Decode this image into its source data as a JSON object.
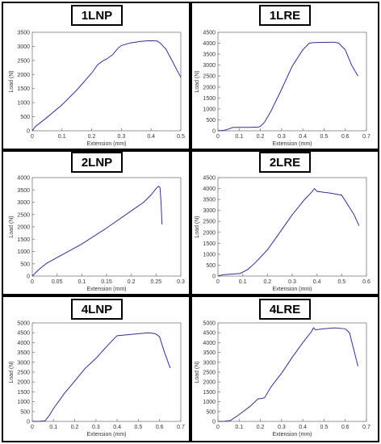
{
  "chart_data": [
    {
      "type": "line",
      "panel_title": "1LNP",
      "xlabel": "Extension (mm)",
      "ylabel": "Load (N)",
      "xlim": [
        0,
        0.5
      ],
      "ylim": [
        0,
        3500
      ],
      "xticks": [
        "0",
        "0.1",
        "0.2",
        "0.3",
        "0.4",
        "0.5"
      ],
      "yticks": [
        "0",
        "500",
        "1000",
        "1500",
        "2000",
        "2500",
        "3000",
        "3500"
      ],
      "grid": false,
      "line_color": "#2e3192",
      "x": [
        0,
        0.01,
        0.05,
        0.1,
        0.15,
        0.2,
        0.22,
        0.24,
        0.25,
        0.27,
        0.29,
        0.3,
        0.33,
        0.36,
        0.38,
        0.4,
        0.42,
        0.43,
        0.45,
        0.47,
        0.49,
        0.5
      ],
      "y": [
        0,
        150,
        480,
        920,
        1450,
        2050,
        2350,
        2500,
        2550,
        2700,
        2950,
        3030,
        3120,
        3170,
        3190,
        3200,
        3190,
        3120,
        2900,
        2500,
        2100,
        1900
      ]
    },
    {
      "type": "line",
      "panel_title": "1LRE",
      "xlabel": "Extension (mm)",
      "ylabel": "Load (N)",
      "xlim": [
        0,
        0.7
      ],
      "ylim": [
        0,
        4500
      ],
      "xticks": [
        "0",
        "0.1",
        "0.2",
        "0.3",
        "0.4",
        "0.5",
        "0.6",
        "0.7"
      ],
      "yticks": [
        "0",
        "500",
        "1000",
        "1500",
        "2000",
        "2500",
        "3000",
        "3500",
        "4000",
        "4500"
      ],
      "grid": false,
      "line_color": "#2e3192",
      "x": [
        0,
        0.03,
        0.05,
        0.07,
        0.1,
        0.15,
        0.19,
        0.2,
        0.22,
        0.25,
        0.3,
        0.35,
        0.4,
        0.43,
        0.45,
        0.5,
        0.55,
        0.57,
        0.6,
        0.63,
        0.66
      ],
      "y": [
        0,
        20,
        80,
        150,
        160,
        160,
        170,
        200,
        400,
        900,
        1900,
        2950,
        3700,
        4000,
        4030,
        4040,
        4050,
        4000,
        3700,
        3000,
        2500
      ]
    },
    {
      "type": "line",
      "panel_title": "2LNP",
      "xlabel": "Extension (mm)",
      "ylabel": "Load (N)",
      "xlim": [
        0,
        0.3
      ],
      "ylim": [
        0,
        4000
      ],
      "xticks": [
        "0",
        "0.05",
        "0.1",
        "0.15",
        "0.2",
        "0.25",
        "0.3"
      ],
      "yticks": [
        "0",
        "500",
        "1000",
        "1500",
        "2000",
        "2500",
        "3000",
        "3500",
        "4000"
      ],
      "grid": false,
      "line_color": "#2e3192",
      "x": [
        0,
        0.01,
        0.02,
        0.03,
        0.05,
        0.1,
        0.15,
        0.2,
        0.225,
        0.24,
        0.25,
        0.255,
        0.258,
        0.26,
        0.262
      ],
      "y": [
        0,
        200,
        380,
        530,
        750,
        1300,
        1950,
        2650,
        3000,
        3300,
        3550,
        3650,
        3600,
        3000,
        2100
      ]
    },
    {
      "type": "line",
      "panel_title": "2LRE",
      "xlabel": "Extension (mm)",
      "ylabel": "Load (N)",
      "xlim": [
        0,
        0.6
      ],
      "ylim": [
        0,
        4500
      ],
      "xticks": [
        "0",
        "0.1",
        "0.2",
        "0.3",
        "0.4",
        "0.5",
        "0.6"
      ],
      "yticks": [
        "0",
        "500",
        "1000",
        "1500",
        "2000",
        "2500",
        "3000",
        "3500",
        "4000",
        "4500"
      ],
      "grid": false,
      "line_color": "#2e3192",
      "x": [
        0,
        0.02,
        0.05,
        0.09,
        0.12,
        0.15,
        0.2,
        0.25,
        0.3,
        0.35,
        0.38,
        0.39,
        0.4,
        0.45,
        0.5,
        0.55,
        0.57
      ],
      "y": [
        0,
        60,
        90,
        120,
        300,
        600,
        1200,
        2000,
        2800,
        3500,
        3850,
        4000,
        3870,
        3800,
        3700,
        2800,
        2300
      ]
    },
    {
      "type": "line",
      "panel_title": "4LNP",
      "xlabel": "Extension (mm)",
      "ylabel": "Load (N)",
      "xlim": [
        0,
        0.7
      ],
      "ylim": [
        0,
        5000
      ],
      "xticks": [
        "0",
        "0.1",
        "0.2",
        "0.3",
        "0.4",
        "0.5",
        "0.6",
        "0.7"
      ],
      "yticks": [
        "0",
        "500",
        "1000",
        "1500",
        "2000",
        "2500",
        "3000",
        "3500",
        "4000",
        "4500",
        "5000"
      ],
      "grid": false,
      "line_color": "#2e3192",
      "x": [
        0,
        0.03,
        0.06,
        0.08,
        0.1,
        0.15,
        0.2,
        0.25,
        0.3,
        0.35,
        0.39,
        0.4,
        0.42,
        0.45,
        0.5,
        0.55,
        0.58,
        0.6,
        0.62,
        0.65
      ],
      "y": [
        0,
        0,
        30,
        300,
        650,
        1400,
        2050,
        2700,
        3200,
        3800,
        4250,
        4350,
        4370,
        4400,
        4450,
        4500,
        4450,
        4300,
        3600,
        2700
      ]
    },
    {
      "type": "line",
      "panel_title": "4LRE",
      "xlabel": "Extension (mm)",
      "ylabel": "Load (N)",
      "xlim": [
        0,
        0.7
      ],
      "ylim": [
        0,
        5000
      ],
      "xticks": [
        "0",
        "0.1",
        "0.2",
        "0.3",
        "0.4",
        "0.5",
        "0.6",
        "0.7"
      ],
      "yticks": [
        "0",
        "500",
        "1000",
        "1500",
        "2000",
        "2500",
        "3000",
        "3500",
        "4000",
        "4500",
        "5000"
      ],
      "grid": false,
      "line_color": "#2e3192",
      "x": [
        0,
        0.03,
        0.06,
        0.1,
        0.15,
        0.19,
        0.2,
        0.22,
        0.25,
        0.3,
        0.35,
        0.4,
        0.44,
        0.45,
        0.46,
        0.5,
        0.55,
        0.6,
        0.62,
        0.66
      ],
      "y": [
        0,
        0,
        50,
        350,
        750,
        1150,
        1150,
        1200,
        1750,
        2450,
        3250,
        4000,
        4550,
        4750,
        4650,
        4700,
        4750,
        4700,
        4500,
        2800
      ]
    }
  ]
}
